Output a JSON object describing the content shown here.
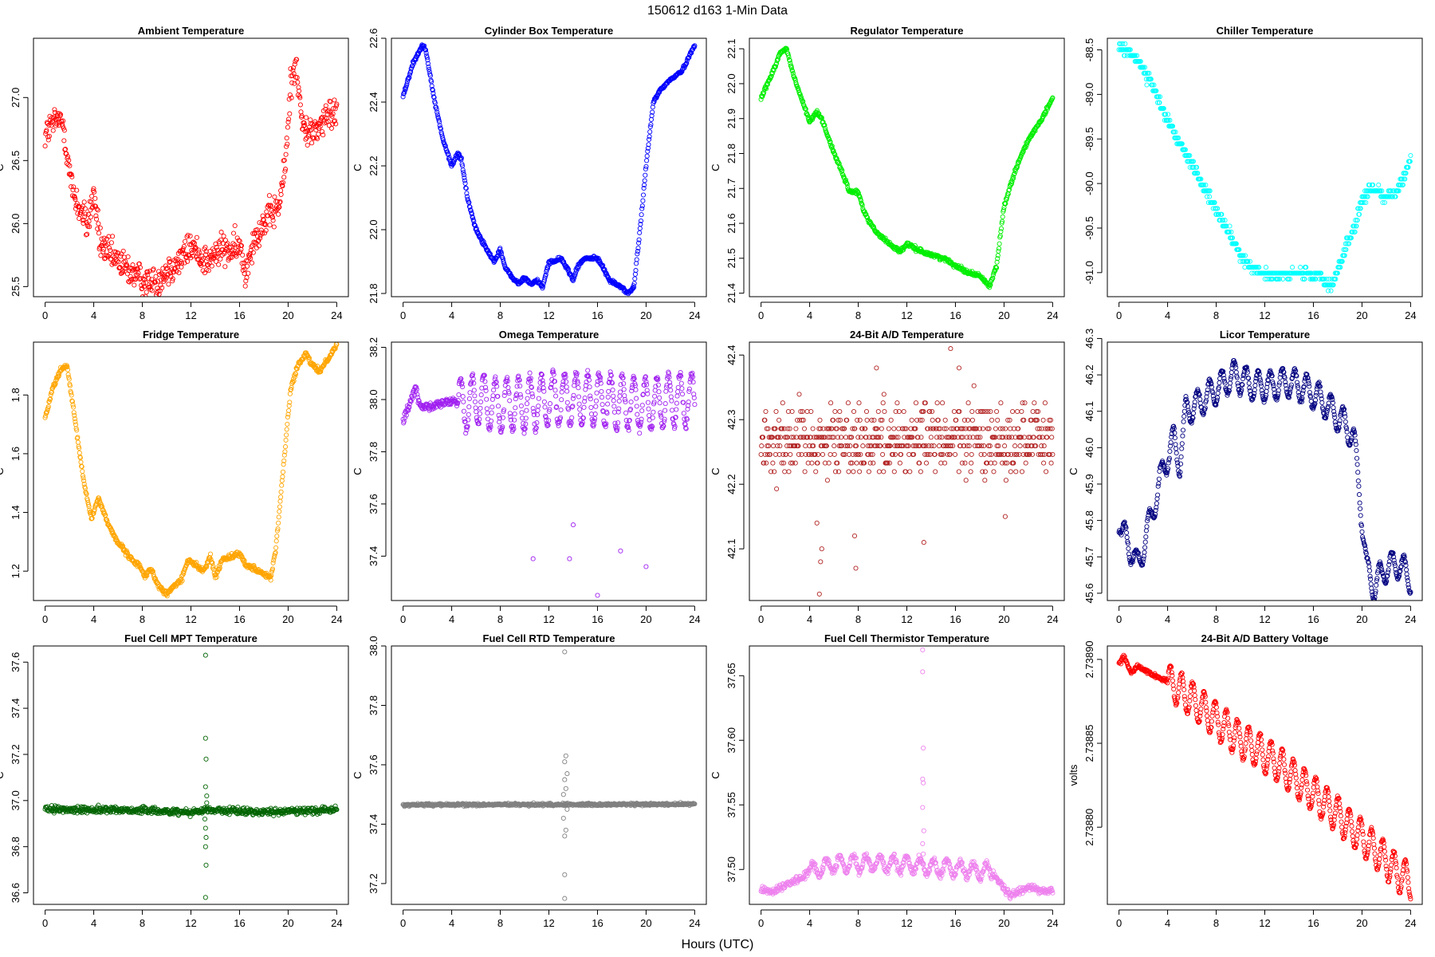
{
  "figure": {
    "suptitle": "150612   d163   1-Min Data",
    "xlabel": "Hours (UTC)"
  },
  "chart_data": [
    {
      "type": "scatter",
      "title": "Ambient Temperature",
      "ylabel": "C",
      "color": "#ff0000",
      "xlim": [
        0,
        24
      ],
      "ylim": [
        25.42,
        27.47
      ],
      "xticks": [
        0,
        4,
        8,
        12,
        16,
        20,
        24
      ],
      "yticks": [
        25.5,
        26.0,
        26.5,
        27.0
      ],
      "ytick_labels": [
        "25.5",
        "26.0",
        "26.5",
        "27.0"
      ],
      "noise": 0.09,
      "x": [
        0,
        0.5,
        1,
        1.5,
        1.8,
        2.2,
        2.8,
        3.5,
        4,
        4.5,
        5.2,
        6,
        7,
        8,
        9,
        10,
        11,
        12,
        12.8,
        13.5,
        14.5,
        15.5,
        16,
        16.5,
        17,
        18,
        18.7,
        19.3,
        19.8,
        20.2,
        20.6,
        21.2,
        22,
        23,
        24
      ],
      "y": [
        26.7,
        26.78,
        26.82,
        26.8,
        26.55,
        26.28,
        26.12,
        25.98,
        26.25,
        25.85,
        25.75,
        25.7,
        25.62,
        25.55,
        25.52,
        25.63,
        25.7,
        25.82,
        25.74,
        25.7,
        25.8,
        25.78,
        25.82,
        25.6,
        25.85,
        26.0,
        26.08,
        26.15,
        26.5,
        27.1,
        27.3,
        26.75,
        26.72,
        26.82,
        26.9
      ]
    },
    {
      "type": "scatter",
      "title": "Cylinder Box Temperature",
      "ylabel": "C",
      "color": "#0000ff",
      "xlim": [
        0,
        24
      ],
      "ylim": [
        21.79,
        22.6
      ],
      "xticks": [
        0,
        4,
        8,
        12,
        16,
        20,
        24
      ],
      "yticks": [
        21.8,
        22.0,
        22.2,
        22.4,
        22.6
      ],
      "ytick_labels": [
        "21.8",
        "22.0",
        "22.2",
        "22.4",
        "22.6"
      ],
      "noise": 0.004,
      "x": [
        0,
        0.8,
        1.6,
        1.9,
        2.5,
        3.3,
        4,
        4.5,
        4.8,
        5.3,
        6,
        7,
        7.5,
        8,
        8.4,
        9,
        9.5,
        10,
        10.5,
        11,
        11.5,
        12,
        12.5,
        13,
        13.5,
        14,
        14.3,
        14.7,
        15,
        16,
        16.5,
        17,
        18,
        18.5,
        19,
        19.5,
        20,
        20.6,
        21.2,
        22,
        23,
        24
      ],
      "y": [
        22.42,
        22.52,
        22.58,
        22.56,
        22.42,
        22.28,
        22.2,
        22.24,
        22.22,
        22.1,
        22.0,
        21.93,
        21.9,
        21.94,
        21.88,
        21.85,
        21.83,
        21.85,
        21.83,
        21.84,
        21.82,
        21.9,
        21.9,
        21.91,
        21.88,
        21.84,
        21.88,
        21.9,
        21.91,
        21.91,
        21.88,
        21.84,
        21.82,
        21.8,
        21.82,
        22.0,
        22.2,
        22.4,
        22.44,
        22.47,
        22.5,
        22.58
      ]
    },
    {
      "type": "scatter",
      "title": "Regulator Temperature",
      "ylabel": "C",
      "color": "#00ee00",
      "xlim": [
        0,
        24
      ],
      "ylim": [
        21.39,
        22.13
      ],
      "xticks": [
        0,
        4,
        8,
        12,
        16,
        20,
        24
      ],
      "yticks": [
        21.4,
        21.5,
        21.6,
        21.7,
        21.8,
        21.9,
        22.0,
        22.1
      ],
      "ytick_labels": [
        "21.4",
        "21.5",
        "21.6",
        "21.7",
        "21.8",
        "21.9",
        "22.0",
        "22.1"
      ],
      "noise": 0.004,
      "x": [
        0,
        0.8,
        1.6,
        2.1,
        2.7,
        3.4,
        4,
        4.6,
        5,
        5.8,
        6.5,
        7.3,
        8,
        8.4,
        9,
        9.6,
        10.3,
        11,
        11.5,
        12,
        12.6,
        13.2,
        14,
        15,
        16,
        17,
        18,
        18.8,
        19.4,
        20,
        21,
        22,
        23,
        24
      ],
      "y": [
        21.96,
        22.02,
        22.09,
        22.1,
        22.02,
        21.95,
        21.89,
        21.92,
        21.9,
        21.82,
        21.76,
        21.69,
        21.69,
        21.64,
        21.6,
        21.57,
        21.55,
        21.53,
        21.52,
        21.54,
        21.53,
        21.52,
        21.51,
        21.5,
        21.48,
        21.46,
        21.45,
        21.42,
        21.48,
        21.65,
        21.76,
        21.84,
        21.89,
        21.96
      ]
    },
    {
      "type": "scatter",
      "title": "Chiller Temperature",
      "ylabel": "",
      "color": "#00ffff",
      "xlim": [
        0,
        24
      ],
      "ylim": [
        -91.27,
        -88.37
      ],
      "xticks": [
        0,
        4,
        8,
        12,
        16,
        20,
        24
      ],
      "yticks": [
        -91.0,
        -90.5,
        -90.0,
        -89.5,
        -89.0,
        -88.5
      ],
      "ytick_labels": [
        "-91.0",
        "-90.5",
        "-90.0",
        "-89.5",
        "-89.0",
        "-88.5"
      ],
      "noise": 0.04,
      "quant": 0.066,
      "x": [
        0,
        0.5,
        1,
        1.5,
        2,
        3,
        4,
        5,
        6,
        7,
        8,
        9,
        10,
        11,
        12,
        13,
        14,
        15,
        16,
        16.5,
        17,
        17.5,
        18,
        18.7,
        19.5,
        20,
        20.8,
        21.5,
        22,
        22.8,
        23.5,
        24
      ],
      "y": [
        -88.45,
        -88.5,
        -88.55,
        -88.6,
        -88.7,
        -88.98,
        -89.3,
        -89.55,
        -89.78,
        -90.05,
        -90.3,
        -90.55,
        -90.8,
        -90.95,
        -91.0,
        -91.05,
        -91.02,
        -91.0,
        -91.05,
        -91.0,
        -91.1,
        -91.12,
        -91.0,
        -90.7,
        -90.45,
        -90.2,
        -90.05,
        -90.1,
        -90.15,
        -90.1,
        -89.9,
        -89.72
      ]
    },
    {
      "type": "scatter",
      "title": "Fridge Temperature",
      "ylabel": "C",
      "color": "#ffa500",
      "xlim": [
        0,
        24
      ],
      "ylim": [
        1.1,
        1.98
      ],
      "xticks": [
        0,
        4,
        8,
        12,
        16,
        20,
        24
      ],
      "yticks": [
        1.2,
        1.4,
        1.6,
        1.8
      ],
      "ytick_labels": [
        "1.2",
        "1.4",
        "1.6",
        "1.8"
      ],
      "noise": 0.006,
      "x": [
        0,
        0.6,
        1.2,
        1.8,
        2.5,
        3.2,
        3.8,
        4.4,
        5,
        5.8,
        6.5,
        7.3,
        7.8,
        8.2,
        8.7,
        9.3,
        10,
        10.6,
        11.2,
        11.8,
        12.4,
        13,
        13.6,
        14,
        14.6,
        15.2,
        16,
        16.6,
        17.2,
        18,
        18.6,
        19,
        19.6,
        20.2,
        20.8,
        21.5,
        22,
        22.6,
        23.2,
        24
      ],
      "y": [
        1.72,
        1.82,
        1.88,
        1.9,
        1.7,
        1.5,
        1.38,
        1.45,
        1.38,
        1.31,
        1.27,
        1.23,
        1.22,
        1.18,
        1.21,
        1.15,
        1.12,
        1.15,
        1.17,
        1.24,
        1.22,
        1.2,
        1.25,
        1.18,
        1.24,
        1.25,
        1.26,
        1.22,
        1.21,
        1.19,
        1.18,
        1.28,
        1.55,
        1.82,
        1.9,
        1.94,
        1.9,
        1.88,
        1.92,
        1.97
      ]
    },
    {
      "type": "scatter",
      "title": "Omega Temperature",
      "ylabel": "C",
      "color": "#a020f0",
      "xlim": [
        0,
        24
      ],
      "ylim": [
        37.23,
        38.22
      ],
      "xticks": [
        0,
        4,
        8,
        12,
        16,
        20,
        24
      ],
      "yticks": [
        37.4,
        37.6,
        37.8,
        38.0,
        38.2
      ],
      "ytick_labels": [
        "37.4",
        "37.6",
        "37.8",
        "38.0",
        "38.2"
      ],
      "noise": 0.012,
      "wave": {
        "start": 4.5,
        "period": 0.95,
        "amp": 0.1
      },
      "x": [
        0,
        0.5,
        1,
        1.5,
        2,
        3,
        4,
        5,
        6,
        8,
        10,
        12,
        14,
        16,
        18,
        20,
        22,
        24
      ],
      "y": [
        37.92,
        37.98,
        38.04,
        37.97,
        37.98,
        37.98,
        38.0,
        37.98,
        38.0,
        37.98,
        37.98,
        38.0,
        38.0,
        38.0,
        37.99,
        37.98,
        38.0,
        38.0
      ],
      "outliers": [
        [
          10.7,
          37.39
        ],
        [
          13.7,
          37.39
        ],
        [
          14.0,
          37.52
        ],
        [
          16.0,
          37.25
        ],
        [
          17.9,
          37.42
        ],
        [
          20.0,
          37.36
        ]
      ]
    },
    {
      "type": "scatter",
      "title": "24-Bit A/D Temperature",
      "ylabel": "C",
      "color": "#b22222",
      "xlim": [
        0,
        24
      ],
      "ylim": [
        42.02,
        42.42
      ],
      "xticks": [
        0,
        4,
        8,
        12,
        16,
        20,
        24
      ],
      "yticks": [
        42.1,
        42.2,
        42.3,
        42.4
      ],
      "ytick_labels": [
        "42.1",
        "42.2",
        "42.3",
        "42.4"
      ],
      "noise": 0.04,
      "quant": 0.0133,
      "x": [
        0,
        24
      ],
      "y": [
        42.27,
        42.27
      ],
      "outliers": [
        [
          4.8,
          42.03
        ],
        [
          4.9,
          42.08
        ],
        [
          5.0,
          42.1
        ],
        [
          7.8,
          42.07
        ],
        [
          7.7,
          42.12
        ],
        [
          13.4,
          42.11
        ],
        [
          15.6,
          42.41
        ],
        [
          16.3,
          42.38
        ],
        [
          20.1,
          42.15
        ],
        [
          4.6,
          42.14
        ],
        [
          9.5,
          42.38
        ]
      ]
    },
    {
      "type": "scatter",
      "title": "Licor Temperature",
      "ylabel": "C",
      "color": "#000080",
      "xlim": [
        0,
        24
      ],
      "ylim": [
        45.58,
        46.29
      ],
      "xticks": [
        0,
        4,
        8,
        12,
        16,
        20,
        24
      ],
      "yticks": [
        45.6,
        45.7,
        45.8,
        45.9,
        46.0,
        46.1,
        46.2,
        46.3
      ],
      "ytick_labels": [
        "45.6",
        "45.7",
        "45.8",
        "45.9",
        "46.0",
        "46.1",
        "46.2",
        "46.3"
      ],
      "noise": 0.004,
      "wave": {
        "start": 0.2,
        "period": 1.0,
        "amp": 0.04,
        "end": 24
      },
      "x": [
        0,
        0.8,
        1.5,
        2.2,
        3,
        3.8,
        4.5,
        5,
        5.5,
        6.5,
        8,
        9.5,
        11,
        12.5,
        14,
        15.5,
        17,
        18.5,
        19.3,
        19.8,
        20.4,
        21,
        22,
        23,
        24
      ],
      "y": [
        45.77,
        45.74,
        45.67,
        45.75,
        45.86,
        45.96,
        46.02,
        45.96,
        46.1,
        46.12,
        46.16,
        46.2,
        46.17,
        46.17,
        46.18,
        46.16,
        46.12,
        46.07,
        46.03,
        45.88,
        45.66,
        45.62,
        45.67,
        45.68,
        45.64
      ]
    },
    {
      "type": "scatter",
      "title": "Fuel Cell MPT Temperature",
      "ylabel": "C",
      "color": "#006400",
      "xlim": [
        0,
        24
      ],
      "ylim": [
        36.55,
        37.67
      ],
      "xticks": [
        0,
        4,
        8,
        12,
        16,
        20,
        24
      ],
      "yticks": [
        36.6,
        36.8,
        37.0,
        37.2,
        37.4,
        37.6
      ],
      "ytick_labels": [
        "36.6",
        "36.8",
        "37.0",
        "37.2",
        "37.4",
        "37.6"
      ],
      "noise": 0.01,
      "x": [
        0,
        6,
        12,
        13.2,
        18,
        24
      ],
      "y": [
        36.96,
        36.96,
        36.95,
        36.96,
        36.95,
        36.96
      ],
      "outliers": [
        [
          13.2,
          37.63
        ],
        [
          13.2,
          37.27
        ],
        [
          13.25,
          37.18
        ],
        [
          13.2,
          37.06
        ],
        [
          13.3,
          37.02
        ],
        [
          13.2,
          36.88
        ],
        [
          13.25,
          36.84
        ],
        [
          13.2,
          36.8
        ],
        [
          13.25,
          36.72
        ],
        [
          13.2,
          36.58
        ],
        [
          13.15,
          36.92
        ],
        [
          13.3,
          36.99
        ]
      ]
    },
    {
      "type": "scatter",
      "title": "Fuel Cell RTD Temperature",
      "ylabel": "C",
      "color": "#808080",
      "xlim": [
        0,
        24
      ],
      "ylim": [
        37.13,
        38.0
      ],
      "xticks": [
        0,
        4,
        8,
        12,
        16,
        20,
        24
      ],
      "yticks": [
        37.2,
        37.4,
        37.6,
        37.8,
        38.0
      ],
      "ytick_labels": [
        "37.2",
        "37.4",
        "37.6",
        "37.8",
        "38.0"
      ],
      "noise": 0.003,
      "x": [
        0,
        24
      ],
      "y": [
        37.465,
        37.467
      ],
      "outliers": [
        [
          13.3,
          37.98
        ],
        [
          13.4,
          37.63
        ],
        [
          13.3,
          37.61
        ],
        [
          13.5,
          37.57
        ],
        [
          13.3,
          37.55
        ],
        [
          13.4,
          37.52
        ],
        [
          13.2,
          37.5
        ],
        [
          13.5,
          37.45
        ],
        [
          13.2,
          37.42
        ],
        [
          13.4,
          37.38
        ],
        [
          13.3,
          37.36
        ],
        [
          13.3,
          37.23
        ],
        [
          13.3,
          37.15
        ]
      ]
    },
    {
      "type": "scatter",
      "title": "Fuel Cell Thermistor Temperature",
      "ylabel": "C",
      "color": "#ee82ee",
      "xlim": [
        0,
        24
      ],
      "ylim": [
        37.473,
        37.673
      ],
      "xticks": [
        0,
        4,
        8,
        12,
        16,
        20,
        24
      ],
      "yticks": [
        37.5,
        37.55,
        37.6,
        37.65
      ],
      "ytick_labels": [
        "37.50",
        "37.55",
        "37.60",
        "37.65"
      ],
      "noise": 0.002,
      "wave": {
        "start": 4.0,
        "period": 1.1,
        "amp": 0.006,
        "end": 19
      },
      "x": [
        0,
        1,
        2,
        3,
        4,
        5,
        6,
        8,
        10,
        12,
        14,
        16,
        17,
        18,
        19,
        20,
        20.5,
        21,
        22,
        23,
        24
      ],
      "y": [
        37.485,
        37.483,
        37.488,
        37.492,
        37.498,
        37.502,
        37.504,
        37.505,
        37.505,
        37.504,
        37.502,
        37.501,
        37.5,
        37.499,
        37.498,
        37.485,
        37.48,
        37.483,
        37.486,
        37.484,
        37.483
      ],
      "outliers": [
        [
          13.3,
          37.67
        ],
        [
          13.3,
          37.653
        ],
        [
          13.35,
          37.594
        ],
        [
          13.3,
          37.57
        ],
        [
          13.35,
          37.567
        ],
        [
          13.3,
          37.548
        ],
        [
          13.4,
          37.53
        ],
        [
          13.3,
          37.52
        ],
        [
          13.35,
          37.512
        ]
      ]
    },
    {
      "type": "scatter",
      "title": "24-Bit A/D Battery Voltage",
      "ylabel": "volts",
      "color": "#ff0000",
      "xlim": [
        0,
        24
      ],
      "ylim": [
        2.738754,
        2.738908
      ],
      "xticks": [
        0,
        4,
        8,
        12,
        16,
        20,
        24
      ],
      "yticks": [
        2.7388,
        2.73885,
        2.7389
      ],
      "ytick_labels": [
        "2.73880",
        "2.73885",
        "2.73890"
      ],
      "noise": 8e-07,
      "wave": {
        "start": 4.0,
        "period": 0.92,
        "amp": 1.05e-05,
        "end": 24
      },
      "x": [
        0,
        0.4,
        1,
        1.5,
        2,
        3,
        4,
        5,
        6,
        7,
        8,
        9,
        10,
        11,
        12,
        13,
        14,
        15,
        16,
        17,
        18,
        19,
        20,
        21,
        22,
        23,
        24
      ],
      "y": [
        2.738897,
        2.738902,
        2.738892,
        2.738896,
        2.738894,
        2.73889,
        2.738887,
        2.738882,
        2.738876,
        2.73887,
        2.738864,
        2.738858,
        2.738852,
        2.738848,
        2.738843,
        2.738838,
        2.738832,
        2.738826,
        2.73882,
        2.738814,
        2.738808,
        2.7388,
        2.738794,
        2.738787,
        2.73878,
        2.738772,
        2.738768
      ]
    }
  ]
}
